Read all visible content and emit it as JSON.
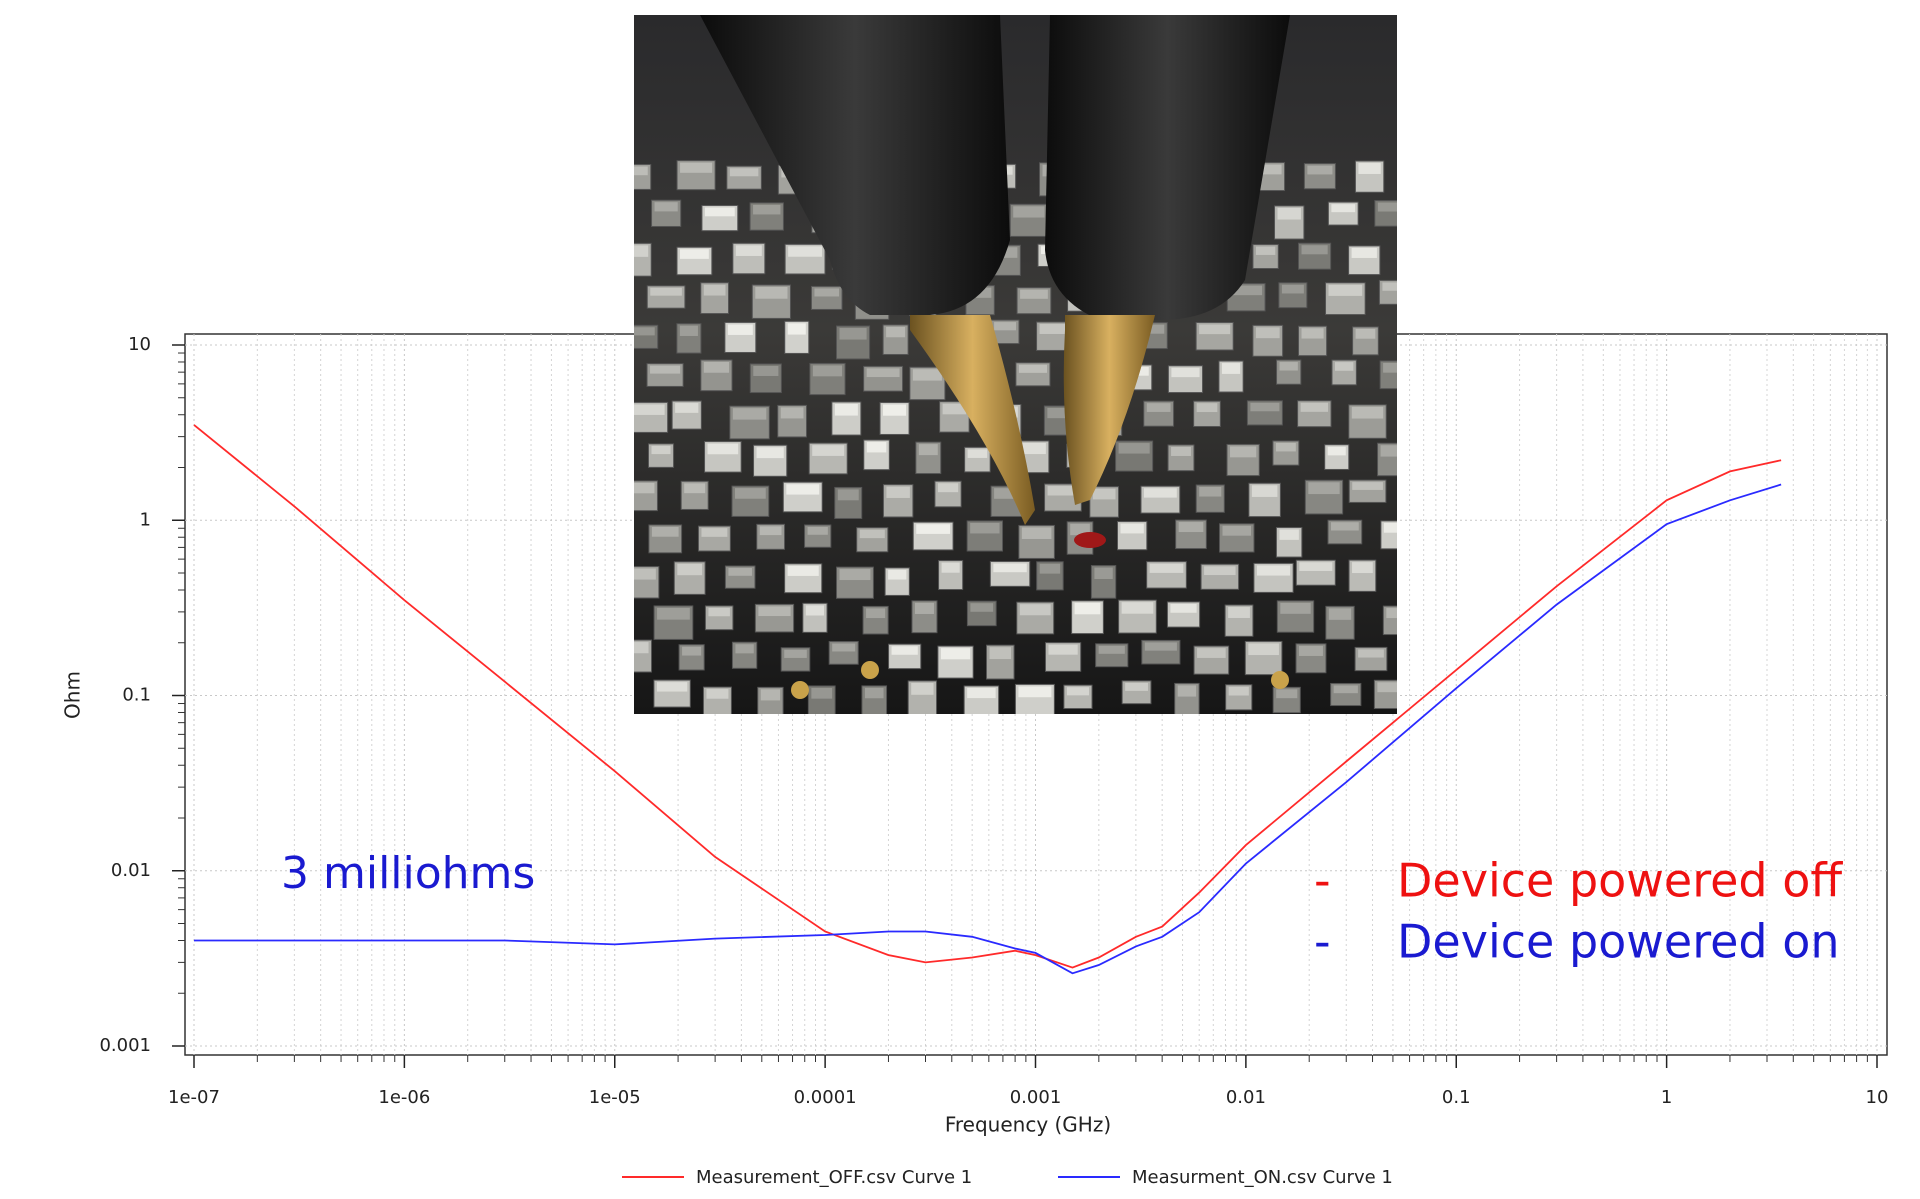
{
  "chart_data": {
    "type": "line",
    "x_label": "Frequency (GHz)",
    "y_label": "Ohm",
    "log_x": true,
    "log_y": true,
    "grid": true,
    "minor_grid": true,
    "xlim": [
      1e-07,
      10
    ],
    "ylim": [
      0.001,
      10
    ],
    "xticks": [
      {
        "value": 1e-07,
        "label": "1e-07"
      },
      {
        "value": 1e-06,
        "label": "1e-06"
      },
      {
        "value": 1e-05,
        "label": "1e-05"
      },
      0.0001,
      0.001,
      0.01,
      0.1,
      1,
      10
    ],
    "yticks": [
      0.001,
      0.01,
      0.1,
      1,
      10
    ],
    "x": [
      1e-07,
      3e-07,
      1e-06,
      3e-06,
      1e-05,
      3e-05,
      0.0001,
      0.0002,
      0.0003,
      0.0005,
      0.0008,
      0.001,
      0.0015,
      0.002,
      0.003,
      0.004,
      0.006,
      0.01,
      0.03,
      0.1,
      0.3,
      1,
      2,
      3.5
    ],
    "series": [
      {
        "name": "Measurement_OFF.csv Curve 1",
        "color": "#ff2a2a",
        "values": [
          3.5,
          1.2,
          0.35,
          0.12,
          0.037,
          0.012,
          0.0045,
          0.0033,
          0.003,
          0.0032,
          0.0035,
          0.0033,
          0.0028,
          0.0032,
          0.0042,
          0.0048,
          0.0075,
          0.014,
          0.042,
          0.14,
          0.42,
          1.3,
          1.9,
          2.2
        ]
      },
      {
        "name": "Measurment_ON.csv Curve 1",
        "color": "#2a2aff",
        "values": [
          0.004,
          0.004,
          0.004,
          0.004,
          0.0038,
          0.0041,
          0.0043,
          0.0045,
          0.0045,
          0.0042,
          0.0036,
          0.0034,
          0.0026,
          0.0029,
          0.0037,
          0.0042,
          0.0058,
          0.011,
          0.032,
          0.11,
          0.33,
          0.95,
          1.3,
          1.6
        ]
      }
    ],
    "annotations": [
      {
        "text": "3 milliohms",
        "color": "#1a1ad0"
      },
      {
        "text": "-",
        "color": "#ee1111"
      },
      {
        "text": "Device powered off",
        "color": "#ee1111"
      },
      {
        "text": "-",
        "color": "#1a1ad0"
      },
      {
        "text": "Device powered on",
        "color": "#1a1ad0"
      }
    ]
  }
}
